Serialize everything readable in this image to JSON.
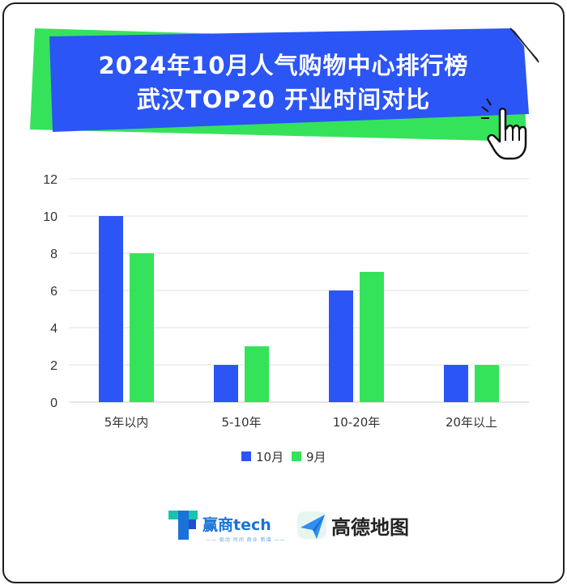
{
  "title_lines": [
    "2024年10月人气购物中心排行榜",
    "武汉TOP20 开业时间对比"
  ],
  "colors": {
    "series_oct": "#2b55f5",
    "series_sep": "#35e35b",
    "banner_blue": "#2b55f5",
    "banner_green": "#35e35b",
    "grid": "#e2e2e2"
  },
  "chart_data": {
    "type": "bar",
    "categories": [
      "5年以内",
      "5-10年",
      "10-20年",
      "20年以上"
    ],
    "series": [
      {
        "name": "10月",
        "values": [
          10,
          2,
          6,
          2
        ]
      },
      {
        "name": "9月",
        "values": [
          8,
          3,
          7,
          2
        ]
      }
    ],
    "ylim": [
      0,
      12
    ],
    "yticks": [
      0,
      2,
      4,
      6,
      8,
      10,
      12
    ],
    "grid": true,
    "legend_position": "bottom"
  },
  "footer": {
    "brand1_name": "赢商tech",
    "brand1_tagline": "—— 驱动 时间 商业 新增 ——",
    "brand2_name": "高德地图"
  }
}
